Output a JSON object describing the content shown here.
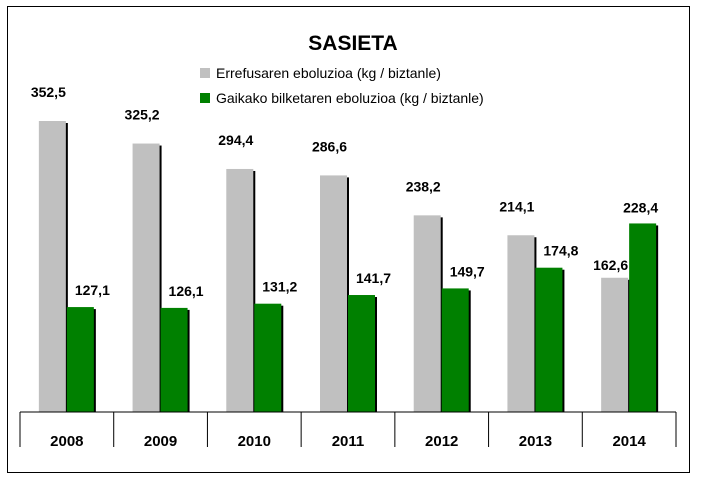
{
  "chart_data": {
    "type": "bar",
    "title": "SASIETA",
    "categories": [
      "2008",
      "2009",
      "2010",
      "2011",
      "2012",
      "2013",
      "2014"
    ],
    "series": [
      {
        "name": "Errefusaren eboluzioa (kg / biztanle)",
        "color": "#c0c0c0",
        "values": [
          352.5,
          325.2,
          294.4,
          286.6,
          238.2,
          214.1,
          162.6
        ],
        "labels": [
          "352,5",
          "325,2",
          "294,4",
          "286,6",
          "238,2",
          "214,1",
          "162,6"
        ]
      },
      {
        "name": "Gaikako bilketaren eboluzioa (kg / biztanle)",
        "color": "#008000",
        "values": [
          127.1,
          126.1,
          131.2,
          141.7,
          149.7,
          174.8,
          228.4
        ],
        "labels": [
          "127,1",
          "126,1",
          "131,2",
          "141,7",
          "149,7",
          "174,8",
          "228,4"
        ]
      }
    ],
    "ylim": [
      0,
      352.5
    ],
    "grid": false,
    "legend_position": "top"
  }
}
